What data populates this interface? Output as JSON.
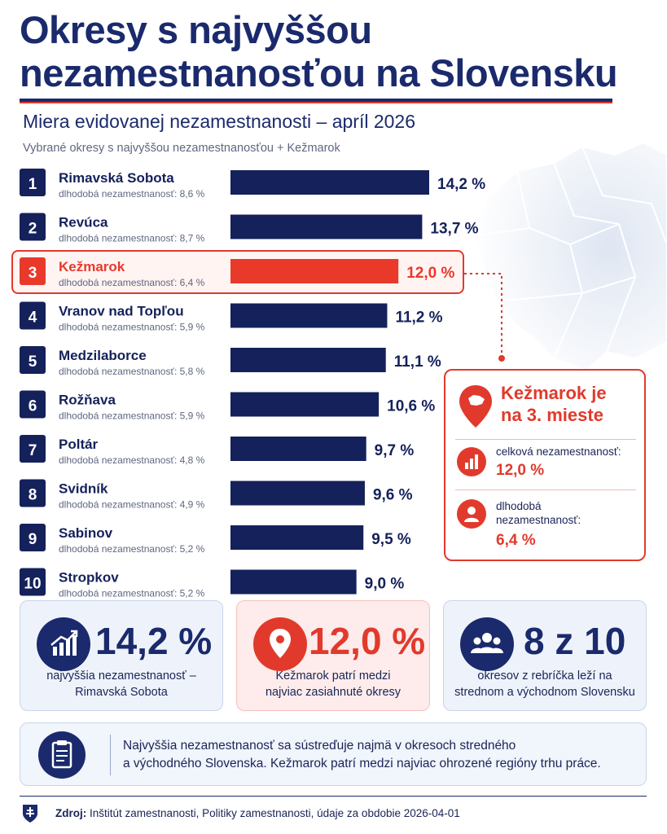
{
  "header": {
    "title_line1": "Okresy s najvyššou",
    "title_line2": "nezamestnanosťou na Slovensku",
    "subtitle": "Miera evidovanej nezamestnanosti – apríl 2026",
    "note": "Vybrané okresy s najvyššou nezamestnanosťou + Kežmarok"
  },
  "chart_data": {
    "type": "bar",
    "orientation": "horizontal",
    "categories": [
      "Rimavská Sobota",
      "Revúca",
      "Kežmarok",
      "Vranov nad Topľou",
      "Medzilaborce",
      "Rožňava",
      "Poltár",
      "Svidník",
      "Sabinov",
      "Stropkov"
    ],
    "ranks": [
      "1",
      "2",
      "3",
      "4",
      "5",
      "6",
      "7",
      "8",
      "9",
      "10"
    ],
    "values": [
      14.2,
      13.7,
      12.0,
      11.2,
      11.1,
      10.6,
      9.7,
      9.6,
      9.5,
      9.0
    ],
    "value_labels": [
      "14,2 %",
      "13,7 %",
      "12,0 %",
      "11,2 %",
      "11,1 %",
      "10,6 %",
      "9,7 %",
      "9,6 %",
      "9,5 %",
      "9,0 %"
    ],
    "sublabels": [
      "dlhodobá nezamestnanosť: 8,6 %",
      "dlhodobá nezamestnanosť: 8,7 %",
      "dlhodobá nezamestnanosť: 6,4 %",
      "dlhodobá nezamestnanosť: 5,9 %",
      "dlhodobá nezamestnanosť: 5,8 %",
      "dlhodobá nezamestnanosť: 5,9 %",
      "dlhodobá nezamestnanosť: 4,8 %",
      "dlhodobá nezamestnanosť: 4,9 %",
      "dlhodobá nezamestnanosť: 5,2 %",
      "dlhodobá nezamestnanosť: 5,2 %"
    ],
    "long_term_values": [
      8.6,
      8.7,
      6.4,
      5.9,
      5.8,
      5.9,
      4.8,
      4.9,
      5.2,
      5.2
    ],
    "highlight_index": 2,
    "xlim": [
      0,
      14.2
    ],
    "colors": {
      "bar": "#14215a",
      "highlight": "#e8392b"
    }
  },
  "callout": {
    "title_line1": "Kežmarok je",
    "title_line2": "na 3. mieste",
    "total_label": "celková nezamestnanosť:",
    "total_value": "12,0 %",
    "longterm_label_line1": "dlhodobá",
    "longterm_label_line2": "nezamestnanosť:",
    "longterm_value": "6,4 %"
  },
  "cards": [
    {
      "big": "14,2 %",
      "line1": "najvyššia nezamestnanosť –",
      "line2": "Rimavská Sobota",
      "icon": "chart-growth-icon"
    },
    {
      "big": "12,0 %",
      "line1": "Kežmarok patrí medzi",
      "line2": "najviac zasiahnuté okresy",
      "icon": "location-pin-icon"
    },
    {
      "big": "8 z 10",
      "line1": "okresov z rebríčka leží na",
      "line2": "strednom a východnom Slovensku",
      "icon": "people-group-icon"
    }
  ],
  "info": {
    "line1": "Najvyššia nezamestnanosť sa sústreďuje najmä v okresoch stredného",
    "line2": "a východného Slovenska. Kežmarok patrí medzi najviac ohrozené regióny trhu práce.",
    "icon": "clipboard-icon"
  },
  "footer": {
    "label": "Zdroj:",
    "text": "Inštitút zamestnanosti, Politiky zamestnanosti, údaje za obdobie 2026-04-01"
  },
  "colors": {
    "navy": "#1a2a6c",
    "red": "#e13a2c",
    "card_blue_bg": "#eef3fb",
    "card_red_bg": "#fdeceb"
  }
}
